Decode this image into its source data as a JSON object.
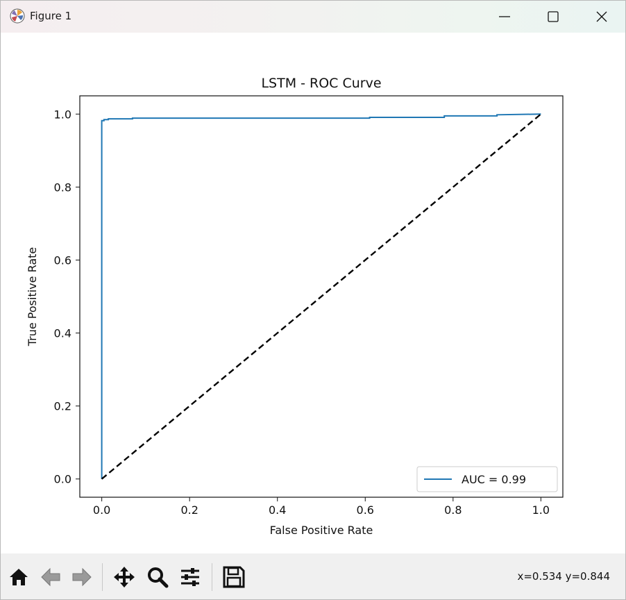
{
  "window": {
    "title": "Figure 1",
    "icon": "matplotlib-logo-icon",
    "controls": [
      "minimize-icon",
      "maximize-icon",
      "close-icon"
    ]
  },
  "toolbar": {
    "buttons": [
      {
        "name": "home-button",
        "icon": "home-icon"
      },
      {
        "name": "back-button",
        "icon": "arrow-left-icon"
      },
      {
        "name": "forward-button",
        "icon": "arrow-right-icon"
      },
      {
        "name": "pan-button",
        "icon": "move-arrows-icon"
      },
      {
        "name": "zoom-button",
        "icon": "magnifier-icon"
      },
      {
        "name": "configure-subplots-button",
        "icon": "sliders-icon"
      },
      {
        "name": "save-button",
        "icon": "floppy-disk-icon"
      }
    ],
    "coords": "x=0.534 y=0.844"
  },
  "colors": {
    "roc_line": "#1f77b4",
    "diagonal": "#000000",
    "toolbar_bg": "#f0f0f0"
  },
  "chart_data": {
    "type": "line",
    "title": "LSTM - ROC Curve",
    "xlabel": "False Positive Rate",
    "ylabel": "True Positive Rate",
    "xlim": [
      -0.05,
      1.05
    ],
    "ylim": [
      -0.05,
      1.05
    ],
    "xticks": [
      0.0,
      0.2,
      0.4,
      0.6,
      0.8,
      1.0
    ],
    "xtick_labels": [
      "0.0",
      "0.2",
      "0.4",
      "0.6",
      "0.8",
      "1.0"
    ],
    "yticks": [
      0.0,
      0.2,
      0.4,
      0.6,
      0.8,
      1.0
    ],
    "ytick_labels": [
      "0.0",
      "0.2",
      "0.4",
      "0.6",
      "0.8",
      "1.0"
    ],
    "grid": false,
    "legend_position": "lower-right",
    "series": [
      {
        "name": "AUC = 0.99",
        "style": "solid",
        "x": [
          0.0,
          0.0,
          0.0,
          0.005,
          0.005,
          0.015,
          0.015,
          0.07,
          0.07,
          0.61,
          0.61,
          0.78,
          0.78,
          0.9,
          0.9,
          1.0
        ],
        "y": [
          0.0,
          0.98,
          0.982,
          0.982,
          0.985,
          0.985,
          0.987,
          0.987,
          0.989,
          0.989,
          0.991,
          0.991,
          0.995,
          0.995,
          0.998,
          1.0
        ]
      },
      {
        "name": "",
        "style": "dashed",
        "x": [
          0.0,
          1.0
        ],
        "y": [
          0.0,
          1.0
        ]
      }
    ],
    "legend": [
      "AUC = 0.99"
    ]
  }
}
